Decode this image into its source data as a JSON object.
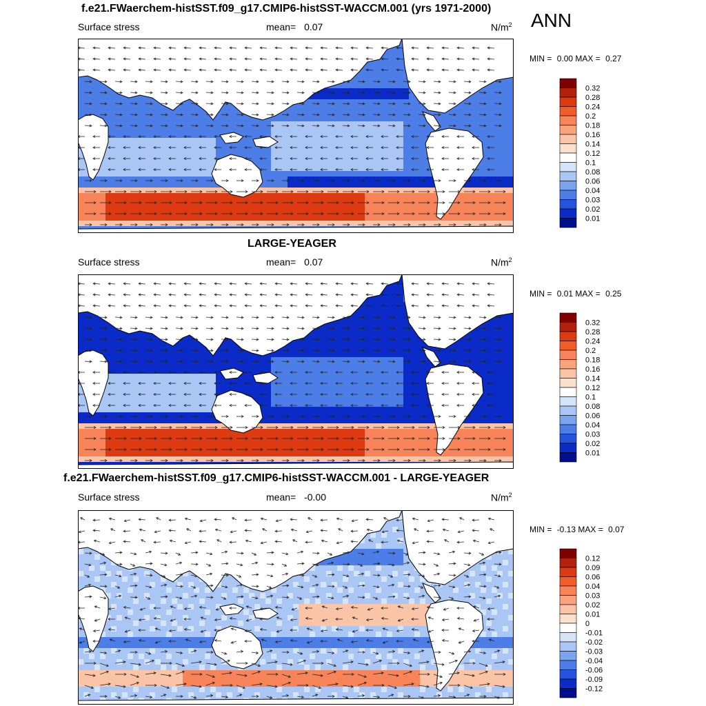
{
  "season": "ANN",
  "panels": [
    {
      "title": "f.e21.FWaerchem-histSST.f09_g17.CMIP6-histSST-WACCM.001 (yrs 1971-2000)",
      "variable": "Surface stress",
      "mean_label": "mean=",
      "mean_value": "0.07",
      "units_base": "N/m",
      "units_exp": "2",
      "min_label": "MIN =",
      "min_value": "0.00",
      "max_label": "MAX =",
      "max_value": "0.27",
      "colorbar_levels": [
        "0.32",
        "0.28",
        "0.24",
        "0.2",
        "0.18",
        "0.16",
        "0.14",
        "0.12",
        "0.1",
        "0.08",
        "0.06",
        "0.04",
        "0.03",
        "0.02",
        "0.01"
      ],
      "colorbar_colors": [
        "#7f0000",
        "#b3200c",
        "#de3a12",
        "#f45b2a",
        "#f8845a",
        "#fba37f",
        "#fcc4a6",
        "#fde0cc",
        "#ffffff",
        "#d6e4fa",
        "#aac6f5",
        "#7aa4f0",
        "#4d7ee8",
        "#2453dd",
        "#0a2bc7",
        "#000d8c"
      ]
    },
    {
      "title": "LARGE-YEAGER",
      "variable": "Surface stress",
      "mean_label": "mean=",
      "mean_value": "0.07",
      "units_base": "N/m",
      "units_exp": "2",
      "min_label": "MIN =",
      "min_value": "0.01",
      "max_label": "MAX =",
      "max_value": "0.25",
      "colorbar_levels": [
        "0.32",
        "0.28",
        "0.24",
        "0.2",
        "0.18",
        "0.16",
        "0.14",
        "0.12",
        "0.1",
        "0.08",
        "0.06",
        "0.04",
        "0.03",
        "0.02",
        "0.01"
      ],
      "colorbar_colors": [
        "#7f0000",
        "#b3200c",
        "#de3a12",
        "#f45b2a",
        "#f8845a",
        "#fba37f",
        "#fcc4a6",
        "#fde0cc",
        "#ffffff",
        "#d6e4fa",
        "#aac6f5",
        "#7aa4f0",
        "#4d7ee8",
        "#2453dd",
        "#0a2bc7",
        "#000d8c"
      ]
    },
    {
      "title": "f.e21.FWaerchem-histSST.f09_g17.CMIP6-histSST-WACCM.001 - LARGE-YEAGER",
      "variable": "Surface stress",
      "mean_label": "mean=",
      "mean_value": "-0.00",
      "units_base": "N/m",
      "units_exp": "2",
      "min_label": "MIN =",
      "min_value": "-0.13",
      "max_label": "MAX =",
      "max_value": "0.07",
      "colorbar_levels": [
        "0.12",
        "0.09",
        "0.06",
        "0.04",
        "0.03",
        "0.02",
        "0.01",
        "0",
        "-0.01",
        "-0.02",
        "-0.03",
        "-0.04",
        "-0.06",
        "-0.09",
        "-0.12"
      ],
      "colorbar_colors": [
        "#7f0000",
        "#b3200c",
        "#de3a12",
        "#f45b2a",
        "#f8845a",
        "#fba37f",
        "#fcc4a6",
        "#fde0cc",
        "#ffffff",
        "#d6e4fa",
        "#aac6f5",
        "#7aa4f0",
        "#4d7ee8",
        "#2453dd",
        "#0a2bc7",
        "#000d8c"
      ]
    }
  ],
  "map_palette": {
    "ocean_low": "#0a2bc7",
    "ocean_mid": "#4d7ee8",
    "ocean_light": "#aac6f5",
    "ocean_pale": "#d6e4fa",
    "warm_light": "#fcc4a6",
    "warm_mid": "#f8845a",
    "warm_high": "#de3a12",
    "land": "#ffffff",
    "coast": "#000000",
    "arrow": "#222222"
  }
}
